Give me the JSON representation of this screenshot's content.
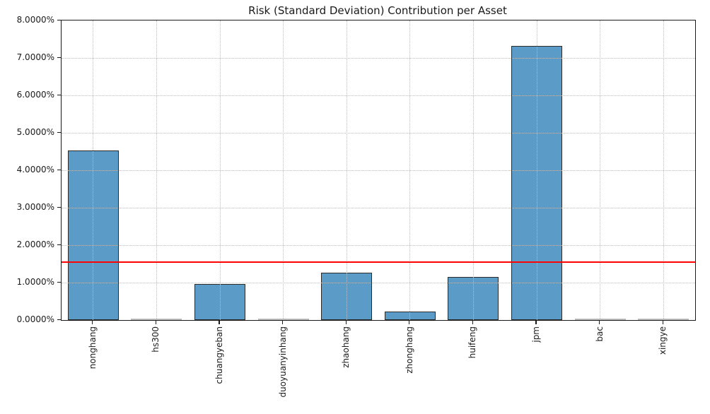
{
  "chart_data": {
    "type": "bar",
    "title": "Risk (Standard Deviation) Contribution per Asset",
    "xlabel": "",
    "ylabel": "",
    "categories": [
      "nonghang",
      "hs300",
      "chuangyeban",
      "duoyuanyinhang",
      "zhaohang",
      "zhonghang",
      "huifeng",
      "jpm",
      "bac",
      "xingye"
    ],
    "values": [
      4.53,
      0.002,
      0.96,
      0.002,
      1.27,
      0.23,
      1.16,
      7.33,
      0.002,
      0.002
    ],
    "value_unit": "percent",
    "ylim": [
      0,
      8
    ],
    "yticks": [
      0,
      1,
      2,
      3,
      4,
      5,
      6,
      7,
      8
    ],
    "ytick_labels": [
      "0.0000%",
      "1.0000%",
      "2.0000%",
      "3.0000%",
      "4.0000%",
      "5.0000%",
      "6.0000%",
      "7.0000%",
      "8.0000%"
    ],
    "mean_line": {
      "value": 1.55,
      "color": "#ff0000"
    },
    "bar_color": "#5b9bc8",
    "bar_edge_color": "#2b2b2b",
    "grid": "dotted, both axes, drawn above bars",
    "legend": "none",
    "xtick_rotation_deg": 90
  }
}
